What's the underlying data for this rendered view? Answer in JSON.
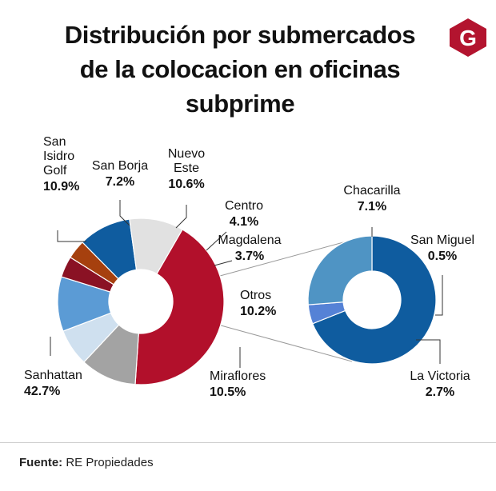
{
  "title": {
    "line1": "Distribución por submercados",
    "line2": "de la colocacion en oficinas",
    "line3": "subprime"
  },
  "logo": {
    "letter": "G",
    "icon": "g-logo-icon",
    "color": "#b3142f"
  },
  "source": {
    "label": "Fuente:",
    "text": "RE Propiedades"
  },
  "chart_data": [
    {
      "type": "pie",
      "variant": "donut",
      "title": "",
      "slices": [
        {
          "label": "Sanhattan",
          "value": 42.7,
          "display": "42.7%",
          "color": "#b2102b"
        },
        {
          "label": "San Isidro Golf",
          "value": 10.9,
          "display": "10.9%",
          "color": "#a3a3a3"
        },
        {
          "label": "San Borja",
          "value": 7.2,
          "display": "7.2%",
          "color": "#cfe0ef"
        },
        {
          "label": "Nuevo Este",
          "value": 10.6,
          "display": "10.6%",
          "color": "#5b9bd5"
        },
        {
          "label": "Centro",
          "value": 4.1,
          "display": "4.1%",
          "color": "#8a1224"
        },
        {
          "label": "Magdalena",
          "value": 3.7,
          "display": "3.7%",
          "color": "#a6400e"
        },
        {
          "label": "Otros",
          "value": 10.2,
          "display": "10.2%",
          "color": "#0f5c9f"
        },
        {
          "label": "Miraflores",
          "value": 10.5,
          "display": "10.5%",
          "color": "#e1e1e1"
        }
      ]
    },
    {
      "type": "pie",
      "variant": "donut",
      "title": "",
      "breakdown_of": "Otros",
      "slices": [
        {
          "label": "Chacarilla",
          "value": 7.1,
          "display": "7.1%",
          "color": "#0f5c9f"
        },
        {
          "label": "San Miguel",
          "value": 0.5,
          "display": "0.5%",
          "color": "#5582d6"
        },
        {
          "label": "La Victoria",
          "value": 2.7,
          "display": "2.7%",
          "color": "#4f94c4"
        }
      ]
    }
  ]
}
